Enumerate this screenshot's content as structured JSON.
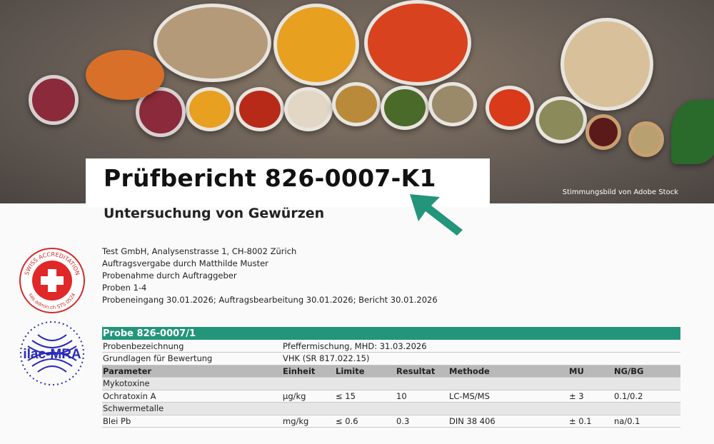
{
  "hero": {
    "caption": "Stimmungsbild von Adobe Stock",
    "accent": "#22957a"
  },
  "report": {
    "title": "Prüfbericht 826-0007-K1",
    "subtitle": "Untersuchung von Gewürzen"
  },
  "logos": {
    "sas": "SWISS ACCREDITATION sas.admin.ch STS 0524",
    "ilac": "ilac-MRA"
  },
  "info": [
    "Test GmbH, Analysenstrasse 1, CH-8002 Zürich",
    "Auftragsvergabe durch Matthilde Muster",
    "Probenahme durch Auftraggeber",
    "Proben 1-4",
    "Probeneingang 30.01.2026; Auftragsbearbeitung 30.01.2026; Bericht 30.01.2026"
  ],
  "table": {
    "probe": "Probe 826-0007/1",
    "meta": [
      [
        "Probenbezeichnung",
        "Pfeffermischung, MHD: 31.03.2026"
      ],
      [
        "Grundlagen für Bewertung",
        "VHK (SR 817.022.15)"
      ]
    ],
    "headers": [
      "Parameter",
      "Einheit",
      "Limite",
      "Resultat",
      "Methode",
      "MU",
      "NG/BG"
    ],
    "groups": [
      {
        "name": "Mykotoxine",
        "rows": [
          [
            "Ochratoxin A",
            "µg/kg",
            "≤ 15",
            "10",
            "LC-MS/MS",
            "± 3",
            "0.1/0.2"
          ]
        ]
      },
      {
        "name": "Schwermetalle",
        "rows": [
          [
            "Blei Pb",
            "mg/kg",
            "≤ 0.6",
            "0.3",
            "DIN 38 406",
            "± 0.1",
            "na/0.1"
          ]
        ]
      }
    ]
  }
}
